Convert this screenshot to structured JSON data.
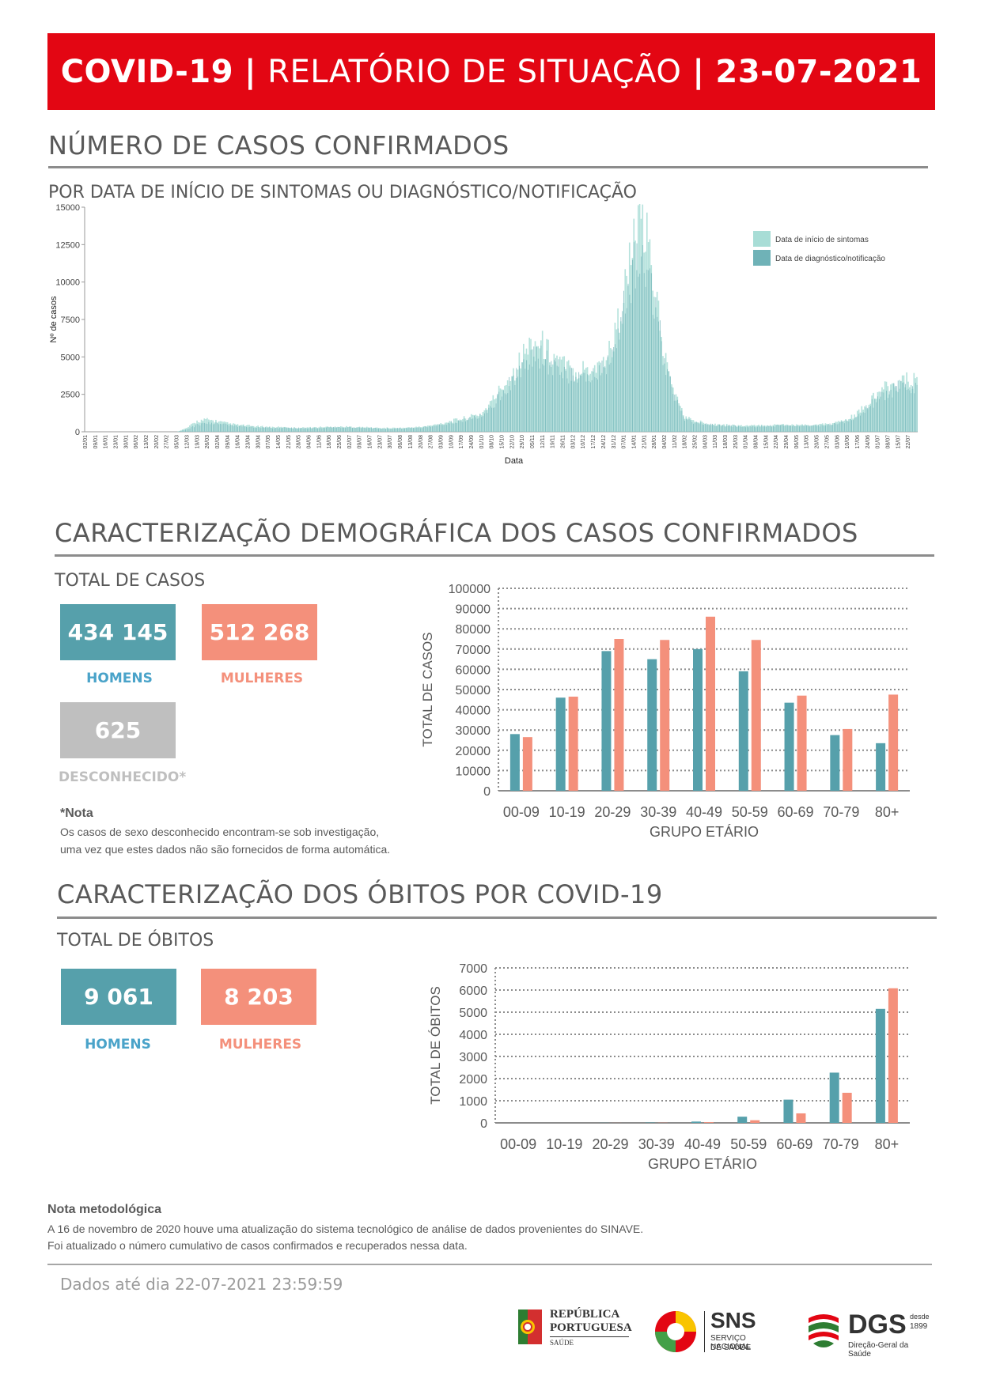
{
  "banner": {
    "left": "COVID-19",
    "sep1": "|",
    "middle": "RELATÓRIO DE SITUAÇÃO",
    "sep2": "|",
    "date": "23-07-2021"
  },
  "section1": {
    "title": "NÚMERO DE CASOS CONFIRMADOS",
    "subtitle": "POR DATA DE INÍCIO DE SINTOMAS OU DIAGNÓSTICO/NOTIFICAÇÃO"
  },
  "section2": {
    "title": "CARACTERIZAÇÃO DEMOGRÁFICA DOS CASOS CONFIRMADOS",
    "subtitle": "TOTAL DE CASOS",
    "men_value": "434 145",
    "men_label": "HOMENS",
    "women_value": "512 268",
    "women_label": "MULHERES",
    "unknown_value": "625",
    "unknown_label": "DESCONHECIDO*",
    "note_title": "*Nota",
    "note_line1": "Os casos de sexo desconhecido encontram-se sob investigação,",
    "note_line2": "uma vez que estes dados não são fornecidos de forma automática."
  },
  "section3": {
    "title": "CARACTERIZAÇÃO DOS ÓBITOS POR COVID-19",
    "subtitle": "TOTAL DE ÓBITOS",
    "men_value": "9 061",
    "men_label": "HOMENS",
    "women_value": "8 203",
    "women_label": "MULHERES"
  },
  "method": {
    "title": "Nota metodológica",
    "line1": "A 16 de novembro de 2020 houve uma atualização do sistema tecnológico de análise de dados provenientes do SINAVE.",
    "line2": "Foi atualizado o número cumulativo de casos confirmados e recuperados nessa data."
  },
  "footer": {
    "date": "Dados até dia 22-07-2021 23:59:59",
    "logo1_line1": "REPÚBLICA",
    "logo1_line2": "PORTUGUESA",
    "logo1_line3": "SAÚDE",
    "logo2_title": "SNS",
    "logo2_line1": "SERVIÇO NACIONAL",
    "logo2_line2": "DE SAÚDE",
    "logo3_title": "DGS",
    "logo3_since": "desde",
    "logo3_year": "1899",
    "logo3_sub": "Direção-Geral da Saúde"
  },
  "colors": {
    "red": "#e30613",
    "teal": "#56a0ab",
    "salmon": "#f4907b",
    "light_teal": "#a8ddd6",
    "grey": "#bfbfbf"
  },
  "chart_data": [
    {
      "type": "bar",
      "xlabel": "Data",
      "ylabel": "Nº de casos",
      "ylim": [
        0,
        15000
      ],
      "yticks": [
        0,
        2500,
        5000,
        7500,
        10000,
        12500,
        15000
      ],
      "x_tick_labels": [
        "02/01",
        "09/01",
        "16/01",
        "23/01",
        "30/01",
        "06/02",
        "13/02",
        "20/02",
        "27/02",
        "05/03",
        "12/03",
        "19/03",
        "26/03",
        "02/04",
        "09/04",
        "16/04",
        "23/04",
        "30/04",
        "07/05",
        "14/05",
        "21/05",
        "28/05",
        "04/06",
        "11/06",
        "18/06",
        "25/06",
        "02/07",
        "09/07",
        "16/07",
        "23/07",
        "30/07",
        "06/08",
        "13/08",
        "20/08",
        "27/08",
        "03/09",
        "10/09",
        "17/09",
        "24/09",
        "01/10",
        "08/10",
        "15/10",
        "22/10",
        "29/10",
        "05/11",
        "12/11",
        "19/11",
        "26/11",
        "03/12",
        "10/12",
        "17/12",
        "24/12",
        "31/12",
        "07/01",
        "14/01",
        "21/01",
        "28/01",
        "04/02",
        "11/02",
        "18/02",
        "25/02",
        "04/03",
        "11/03",
        "18/03",
        "25/03",
        "01/04",
        "08/04",
        "15/04",
        "22/04",
        "29/04",
        "06/05",
        "13/05",
        "20/05",
        "27/05",
        "03/06",
        "10/06",
        "17/06",
        "24/06",
        "01/07",
        "08/07",
        "15/07",
        "22/07"
      ],
      "legend_position": "top-right",
      "series": [
        {
          "name": "Data de início de sintomas",
          "color": "#a8ddd6",
          "weekly_values": [
            0,
            0,
            0,
            0,
            0,
            0,
            0,
            0,
            0,
            0,
            250,
            700,
            800,
            700,
            550,
            450,
            400,
            350,
            320,
            300,
            280,
            260,
            280,
            300,
            320,
            330,
            320,
            300,
            280,
            250,
            250,
            250,
            280,
            320,
            400,
            550,
            700,
            850,
            1000,
            1200,
            2000,
            3000,
            3800,
            5000,
            6000,
            5800,
            5000,
            4500,
            4000,
            4200,
            4300,
            4600,
            6000,
            9000,
            12500,
            13500,
            10000,
            5000,
            2500,
            1000,
            700,
            600,
            500,
            450,
            420,
            400,
            400,
            420,
            450,
            480,
            450,
            420,
            450,
            500,
            600,
            800,
            1200,
            1800,
            2500,
            3000,
            3200,
            3400
          ]
        },
        {
          "name": "Data de diagnóstico/notificação",
          "color": "#6fb2b7",
          "weekly_values": [
            0,
            0,
            0,
            0,
            0,
            0,
            0,
            0,
            0,
            0,
            150,
            450,
            600,
            550,
            450,
            380,
            330,
            300,
            280,
            260,
            250,
            240,
            250,
            270,
            290,
            300,
            290,
            270,
            250,
            230,
            230,
            230,
            250,
            290,
            350,
            480,
            620,
            750,
            900,
            1050,
            1700,
            2600,
            3300,
            4300,
            5200,
            5000,
            4400,
            4000,
            3600,
            3800,
            3900,
            4200,
            5400,
            8000,
            11000,
            12000,
            8800,
            4500,
            2200,
            900,
            600,
            500,
            450,
            400,
            380,
            360,
            360,
            380,
            400,
            420,
            400,
            380,
            400,
            450,
            540,
            700,
            1050,
            1600,
            2200,
            2700,
            2900,
            3000
          ]
        }
      ]
    },
    {
      "type": "bar",
      "xlabel": "GRUPO ETÁRIO",
      "ylabel": "TOTAL DE CASOS",
      "ylim": [
        0,
        100000
      ],
      "yticks": [
        0,
        10000,
        20000,
        30000,
        40000,
        50000,
        60000,
        70000,
        80000,
        90000,
        100000
      ],
      "categories": [
        "00-09",
        "10-19",
        "20-29",
        "30-39",
        "40-49",
        "50-59",
        "60-69",
        "70-79",
        "80+"
      ],
      "series": [
        {
          "name": "HOMENS",
          "color": "#56a0ab",
          "values": [
            28000,
            46000,
            69000,
            65000,
            70000,
            59000,
            43500,
            27500,
            23500
          ]
        },
        {
          "name": "MULHERES",
          "color": "#f4907b",
          "values": [
            26500,
            46500,
            75000,
            74500,
            86000,
            74500,
            47000,
            30500,
            47500
          ]
        }
      ]
    },
    {
      "type": "bar",
      "xlabel": "GRUPO ETÁRIO",
      "ylabel": "TOTAL DE ÓBITOS",
      "ylim": [
        0,
        7000
      ],
      "yticks": [
        0,
        1000,
        2000,
        3000,
        4000,
        5000,
        6000,
        7000
      ],
      "categories": [
        "00-09",
        "10-19",
        "20-29",
        "30-39",
        "40-49",
        "50-59",
        "60-69",
        "70-79",
        "80+"
      ],
      "series": [
        {
          "name": "HOMENS",
          "color": "#56a0ab",
          "values": [
            0,
            0,
            5,
            15,
            60,
            280,
            1050,
            2270,
            5150
          ]
        },
        {
          "name": "MULHERES",
          "color": "#f4907b",
          "values": [
            0,
            0,
            3,
            8,
            30,
            120,
            430,
            1360,
            6080
          ]
        }
      ]
    }
  ]
}
